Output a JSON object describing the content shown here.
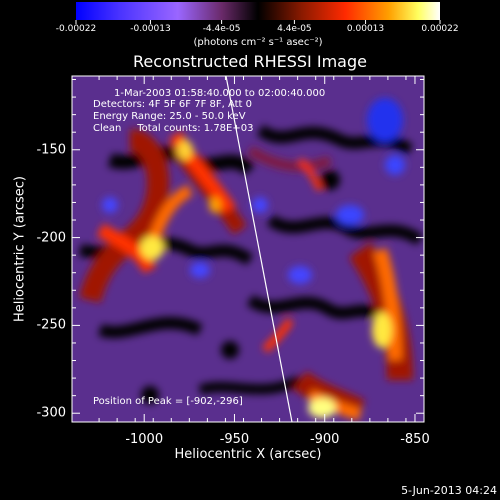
{
  "colorbar": {
    "tick_labels": [
      "-0.00022",
      "-0.00013",
      "-4.4e-05",
      "4.4e-05",
      "0.00013",
      "0.00022"
    ],
    "tick_values": [
      -0.00022,
      -0.00013,
      -4.4e-05,
      4.4e-05,
      0.00013,
      0.00022
    ],
    "range": [
      -0.00022,
      0.00022
    ],
    "units": "(photons cm⁻² s⁻¹ asec⁻²)",
    "gradient_colors": [
      "#0000ff",
      "#4a33ff",
      "#9a66ff",
      "#6a2a6a",
      "#000000",
      "#8a1a00",
      "#ff2a00",
      "#ffa000",
      "#ffff60",
      "#ffffff"
    ]
  },
  "title": "Reconstructed RHESSI Image",
  "annotations": {
    "time_range": "1-Mar-2003 01:58:40.000 to 02:00:40.000",
    "detectors": "Detectors: 4F 5F 6F 7F 8F, Att 0",
    "energy_range": "Energy Range: 25.0 - 50.0 keV",
    "clean": "Clean     Total counts: 1.78E+03",
    "peak": "Position of Peak = [-902,-296]"
  },
  "axes": {
    "xlabel": "Heliocentric X (arcsec)",
    "ylabel": "Heliocentric Y (arcsec)",
    "xlim": [
      -1040,
      -845
    ],
    "ylim": [
      -305,
      -108
    ],
    "xticks": [
      -1000,
      -950,
      -900,
      -850
    ],
    "xtick_labels": [
      "-1000",
      "-950",
      "-900",
      "-850"
    ],
    "yticks": [
      -150,
      -200,
      -250,
      -300
    ],
    "ytick_labels": [
      "-150",
      "-200",
      "-250",
      "-300"
    ]
  },
  "footer_date": "5-Jun-2013 04:24"
}
